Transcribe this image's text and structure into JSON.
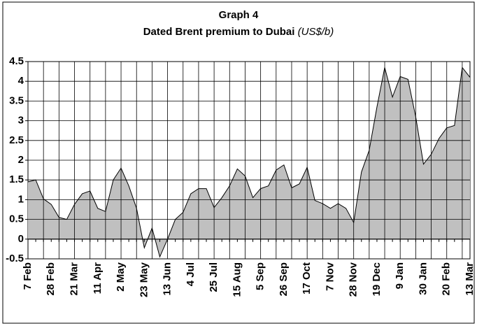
{
  "chart_data": {
    "type": "area",
    "title": "Graph 4",
    "subtitle": "Dated Brent premium to Dubai",
    "unit": "(US$/b)",
    "categories": [
      "7 Feb",
      null,
      null,
      "28 Feb",
      null,
      null,
      "21 Mar",
      null,
      null,
      "11 Apr",
      null,
      null,
      "2 May",
      null,
      null,
      "23 May",
      null,
      null,
      "13 Jun",
      null,
      null,
      "4 Jul",
      null,
      null,
      "25 Jul",
      null,
      null,
      "15 Aug",
      null,
      null,
      "5 Sep",
      null,
      null,
      "26 Sep",
      null,
      null,
      "17 Oct",
      null,
      null,
      "7 Nov",
      null,
      null,
      "28 Nov",
      null,
      null,
      "19 Dec",
      null,
      null,
      "9 Jan",
      null,
      null,
      "30 Jan",
      null,
      null,
      "20 Feb",
      null,
      null,
      "13 Mar"
    ],
    "values": [
      1.45,
      1.5,
      1.02,
      0.88,
      0.55,
      0.5,
      0.88,
      1.15,
      1.22,
      0.78,
      0.7,
      1.5,
      1.8,
      1.35,
      0.78,
      -0.22,
      0.28,
      -0.45,
      0.0,
      0.5,
      0.68,
      1.15,
      1.28,
      1.28,
      0.8,
      1.05,
      1.35,
      1.78,
      1.6,
      1.05,
      1.28,
      1.35,
      1.75,
      1.88,
      1.3,
      1.4,
      1.82,
      0.98,
      0.9,
      0.78,
      0.9,
      0.78,
      0.42,
      1.7,
      2.25,
      3.35,
      4.35,
      3.6,
      4.12,
      4.05,
      3.1,
      1.9,
      2.15,
      2.55,
      2.82,
      2.88,
      4.35,
      4.1
    ],
    "color": "#c0c0c0",
    "ylim": [
      -0.5,
      4.5
    ],
    "yticks": [
      -0.5,
      0,
      0.5,
      1,
      1.5,
      2,
      2.5,
      3,
      3.5,
      4,
      4.5
    ],
    "grid": true
  }
}
